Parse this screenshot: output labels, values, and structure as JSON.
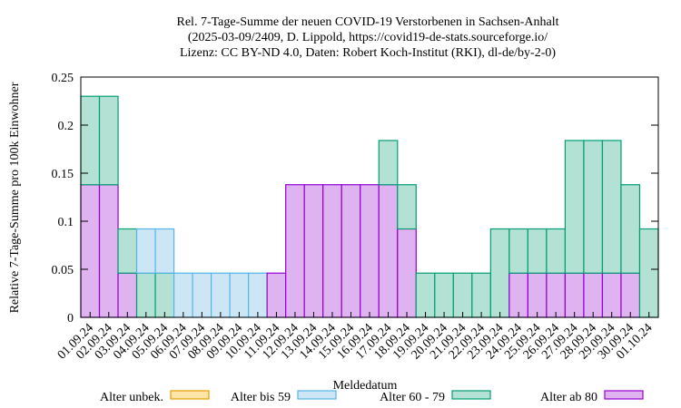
{
  "chart_data": {
    "type": "stacked-bar",
    "title": [
      "Rel. 7-Tage-Summe der neuen COVID-19 Verstorbenen in Sachsen-Anhalt",
      "(2025-03-09/2409, D. Lippold, https://covid19-de-stats.sourceforge.io/",
      "Lizenz: CC BY-ND 4.0, Daten: Robert Koch-Institut (RKI), dl-de/by-2-0)"
    ],
    "xlabel": "Meldedatum",
    "ylabel": "Relative 7-Tage-Summe pro 100k Einwohner",
    "categories": [
      "01.09.24",
      "02.09.24",
      "03.09.24",
      "04.09.24",
      "05.09.24",
      "06.09.24",
      "07.09.24",
      "08.09.24",
      "09.09.24",
      "10.09.24",
      "11.09.24",
      "12.09.24",
      "13.09.24",
      "14.09.24",
      "15.09.24",
      "16.09.24",
      "17.09.24",
      "18.09.24",
      "19.09.24",
      "20.09.24",
      "21.09.24",
      "22.09.24",
      "23.09.24",
      "24.09.24",
      "25.09.24",
      "26.09.24",
      "27.09.24",
      "28.09.24",
      "29.09.24",
      "30.09.24",
      "01.10.24"
    ],
    "series": [
      {
        "name": "Alter unbek.",
        "color": "#e69f00",
        "fill": "#fde4a8",
        "values": [
          0,
          0,
          0,
          0,
          0,
          0,
          0,
          0,
          0,
          0,
          0,
          0,
          0,
          0,
          0,
          0,
          0,
          0,
          0,
          0,
          0,
          0,
          0,
          0,
          0,
          0,
          0,
          0,
          0,
          0,
          0
        ]
      },
      {
        "name": "Alter bis 59",
        "color": "#56b4e9",
        "fill": "#cce6f6",
        "values": [
          0,
          0,
          0,
          0.046,
          0.046,
          0.046,
          0.046,
          0.046,
          0.046,
          0.046,
          0,
          0,
          0,
          0,
          0,
          0,
          0,
          0,
          0,
          0,
          0,
          0,
          0,
          0,
          0,
          0,
          0,
          0,
          0,
          0,
          0
        ]
      },
      {
        "name": "Alter 60 - 79",
        "color": "#009e73",
        "fill": "#b3e2d5",
        "values": [
          0.092,
          0.092,
          0.046,
          0.046,
          0.046,
          0,
          0,
          0,
          0,
          0,
          0,
          0,
          0,
          0,
          0,
          0,
          0.046,
          0.046,
          0.046,
          0.046,
          0.046,
          0.046,
          0.092,
          0.046,
          0.046,
          0.046,
          0.138,
          0.138,
          0.138,
          0.092,
          0.092
        ]
      },
      {
        "name": "Alter ab 80",
        "color": "#9400d3",
        "fill": "#dfb3f0",
        "values": [
          0.138,
          0.138,
          0.046,
          0,
          0,
          0,
          0,
          0,
          0,
          0,
          0.046,
          0.138,
          0.138,
          0.138,
          0.138,
          0.138,
          0.138,
          0.092,
          0,
          0,
          0,
          0,
          0,
          0.046,
          0.046,
          0.046,
          0.046,
          0.046,
          0.046,
          0.046,
          0
        ]
      }
    ],
    "ylim": [
      0,
      0.25
    ],
    "yticks": [
      0,
      0.05,
      0.1,
      0.15,
      0.2,
      0.25
    ]
  }
}
